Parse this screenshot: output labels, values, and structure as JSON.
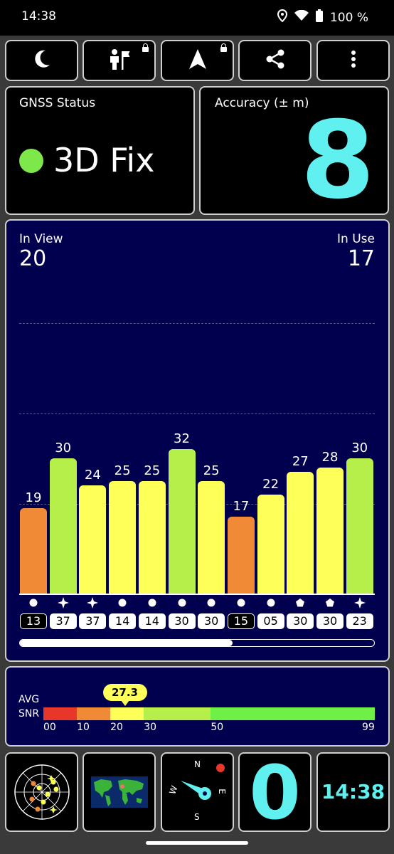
{
  "status_bar": {
    "time": "14:38",
    "battery": "100 %"
  },
  "toolbar": [
    {
      "name": "night-mode-button",
      "icon": "moon-icon",
      "locked": false
    },
    {
      "name": "guide-button",
      "icon": "person-flag-icon",
      "locked": true
    },
    {
      "name": "navigation-button",
      "icon": "navigation-arrow-icon",
      "locked": true
    },
    {
      "name": "share-button",
      "icon": "share-icon",
      "locked": false
    },
    {
      "name": "more-button",
      "icon": "more-vert-icon",
      "locked": false
    }
  ],
  "gnss": {
    "label": "GNSS Status",
    "value": "3D Fix",
    "dot_color": "#7ee84a"
  },
  "accuracy": {
    "label": "Accuracy (± m)",
    "value": "8",
    "color": "#5ff0ef"
  },
  "satellites": {
    "in_view_label": "In View",
    "in_view": "20",
    "in_use_label": "In Use",
    "in_use": "17",
    "scroll_fraction": 0.6
  },
  "chart_data": {
    "type": "bar",
    "ylim": [
      0,
      60
    ],
    "values": [
      19,
      30,
      24,
      25,
      25,
      32,
      25,
      17,
      22,
      27,
      28,
      30
    ],
    "value_labels": [
      "19",
      "30",
      "24",
      "25",
      "25",
      "32",
      "25",
      "17",
      "22",
      "27",
      "28",
      "30"
    ],
    "prn": [
      "13",
      "37",
      "37",
      "14",
      "14",
      "30",
      "30",
      "15",
      "05",
      "30",
      "30",
      "23"
    ],
    "in_use": [
      false,
      true,
      true,
      true,
      true,
      true,
      true,
      false,
      true,
      true,
      true,
      true
    ],
    "constellation": [
      "circle",
      "star",
      "star",
      "circle",
      "circle",
      "circle",
      "circle",
      "circle",
      "circle",
      "pentagon",
      "pentagon",
      "star"
    ]
  },
  "snr": {
    "label_line1": "AVG",
    "label_line2": "SNR",
    "average": 27.3,
    "average_label": "27.3",
    "ticks": [
      "00",
      "10",
      "20",
      "30",
      "50",
      "99"
    ],
    "segments": [
      {
        "color": "#e8362a"
      },
      {
        "color": "#f08a36"
      },
      {
        "color": "#ffff5a"
      },
      {
        "color": "#b6ee4a"
      },
      {
        "color": "#6ef046"
      }
    ]
  },
  "bottom": {
    "count": "0",
    "clock": "14:38",
    "compass": {
      "n": "N",
      "e": "E",
      "s": "S",
      "w": "W"
    }
  }
}
